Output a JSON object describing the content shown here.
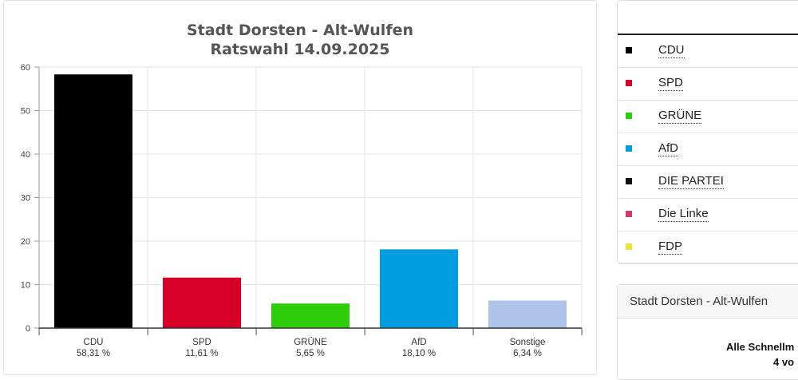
{
  "chart_data": {
    "type": "bar",
    "title": "Stadt Dorsten - Alt-Wulfen",
    "subtitle": "Ratswahl 14.09.2025",
    "xlabel": "",
    "ylabel": "",
    "ylim": [
      0,
      60
    ],
    "yticks": [
      "0",
      "10",
      "20",
      "30",
      "40",
      "50",
      "60"
    ],
    "grid": true,
    "categories": [
      "CDU",
      "SPD",
      "GRÜNE",
      "AfD",
      "Sonstige"
    ],
    "value_labels": [
      "58,31 %",
      "11,61 %",
      "5,65 %",
      "18,10 %",
      "6,34 %"
    ],
    "values": [
      58.31,
      11.61,
      5.65,
      18.1,
      6.34
    ],
    "colors": [
      "#000000",
      "#d5002a",
      "#2ecc0a",
      "#009ee0",
      "#aec3e7"
    ]
  },
  "legend": {
    "items": [
      {
        "label": "CDU",
        "color": "#000000"
      },
      {
        "label": "SPD",
        "color": "#d5002a"
      },
      {
        "label": "GRÜNE",
        "color": "#2ecc0a"
      },
      {
        "label": "AfD",
        "color": "#009ee0"
      },
      {
        "label": "DIE PARTEI",
        "color": "#111111"
      },
      {
        "label": "Die Linke",
        "color": "#d7386b"
      },
      {
        "label": "FDP",
        "color": "#f0e33a"
      }
    ]
  },
  "info_panel": {
    "title": "Stadt Dorsten - Alt-Wulfen",
    "line1": "Alle Schnellm",
    "line2": "4 vo"
  }
}
